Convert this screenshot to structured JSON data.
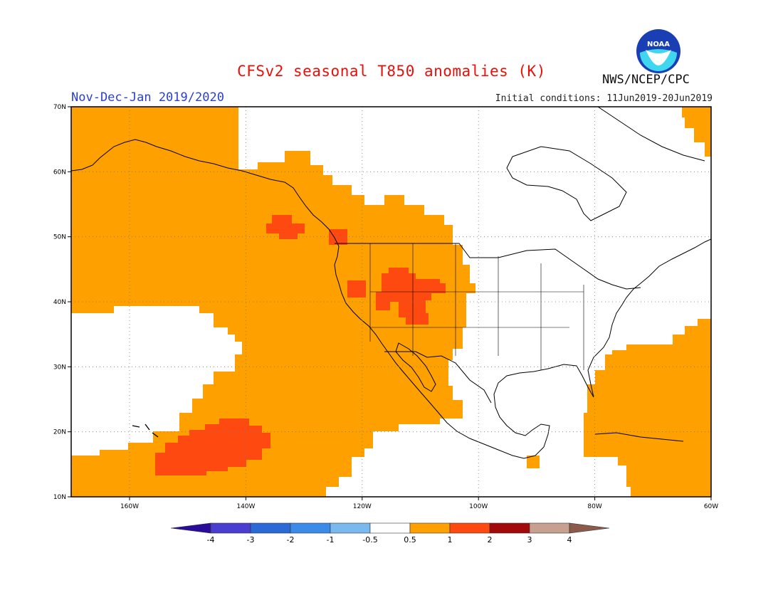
{
  "header": {
    "title": "CFSv2 seasonal T850 anomalies (K)",
    "period": "Nov-Dec-Jan 2019/2020",
    "initial_conditions": "Initial conditions: 11Jun2019-20Jun2019",
    "agency": "NWS/NCEP/CPC",
    "logo_text": "NOAA"
  },
  "map": {
    "lat_labels": [
      "70N",
      "60N",
      "50N",
      "40N",
      "30N",
      "20N",
      "10N"
    ],
    "lon_labels": [
      "160W",
      "140W",
      "120W",
      "100W",
      "80W",
      "60W"
    ],
    "colors": {
      "pos_05_1": "#fea000",
      "pos_1_2": "#fe4a11",
      "background": "#ffffff",
      "coast": "#000000"
    }
  },
  "colorbar": {
    "labels": [
      "-4",
      "-3",
      "-2",
      "-1",
      "-0.5",
      "0.5",
      "1",
      "2",
      "3",
      "4"
    ],
    "colors": [
      "#2a0c9a",
      "#4a3ed0",
      "#2a6ad6",
      "#3a8ce8",
      "#7ab8f0",
      "#ffffff",
      "#fea000",
      "#fe4a11",
      "#a20a0a",
      "#c8a090",
      "#8b5a4a"
    ]
  }
}
